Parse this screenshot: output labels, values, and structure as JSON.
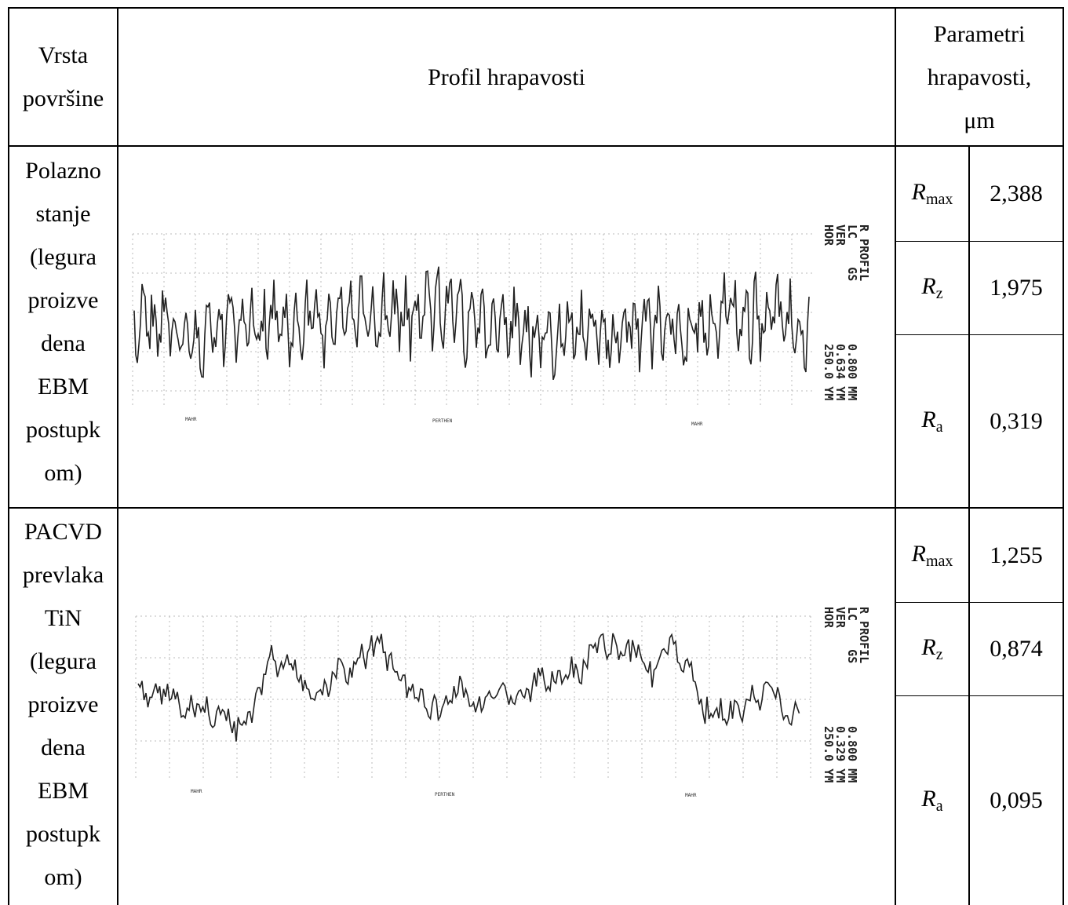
{
  "header": {
    "col1": [
      "Vrsta",
      "površine"
    ],
    "col2": "Profil hrapavosti",
    "col3": [
      "Parametri",
      "hrapavosti,",
      "μm"
    ]
  },
  "rows": [
    {
      "label": [
        "Polazno",
        "stanje",
        "(legura",
        "proizve",
        "dena",
        "EBM",
        "postupk",
        "om)"
      ],
      "params": [
        {
          "symbol": "R",
          "sub": "max",
          "value": "2,388"
        },
        {
          "symbol": "R",
          "sub": "z",
          "value": "1,975"
        },
        {
          "symbol": "R",
          "sub": "a",
          "value": "0,319"
        }
      ],
      "plot": {
        "header_lines": [
          "R PROFIL",
          "LC    GS",
          "VER",
          "HOR"
        ],
        "value_lines": [
          "0.800 MM",
          "0.634 YM",
          "250.0 YM"
        ],
        "bottom_labels": [
          "MAHR",
          "PERTHEN",
          "MAHR"
        ]
      }
    },
    {
      "label": [
        "PACVD",
        "prevlaka",
        "TiN",
        "(legura",
        "proizve",
        "dena",
        "EBM",
        "postupk",
        "om)"
      ],
      "params": [
        {
          "symbol": "R",
          "sub": "max",
          "value": "1,255"
        },
        {
          "symbol": "R",
          "sub": "z",
          "value": "0,874"
        },
        {
          "symbol": "R",
          "sub": "a",
          "value": "0,095"
        }
      ],
      "plot": {
        "header_lines": [
          "R PROFIL",
          "LC    GS",
          "VER",
          "HOR"
        ],
        "value_lines": [
          "0.800 MM",
          "0.329 YM",
          "250.0 YM"
        ],
        "bottom_labels": [
          "MAHR",
          "PERTHEN",
          "MAHR"
        ]
      }
    }
  ]
}
